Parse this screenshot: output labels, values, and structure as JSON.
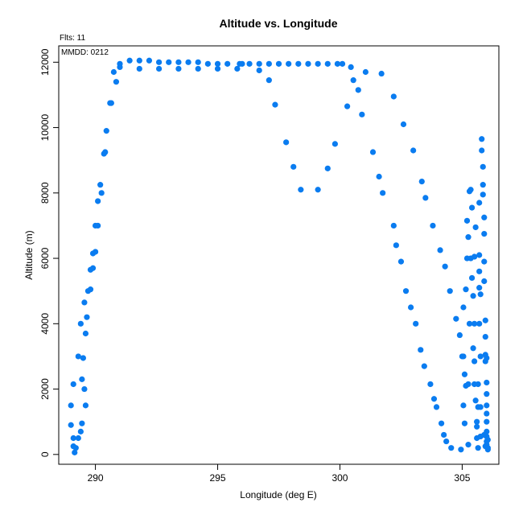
{
  "chart_data": {
    "type": "scatter",
    "title": "Altitude vs. Longitude",
    "xlabel": "Longitude (deg E)",
    "ylabel": "Altitude (m)",
    "xlim": [
      288.5,
      306.5
    ],
    "ylim": [
      -300,
      12500
    ],
    "xticks": [
      "290",
      "295",
      "300",
      "305"
    ],
    "xtick_values": [
      290,
      295,
      300,
      305
    ],
    "yticks": [
      "0",
      "2000",
      "4000",
      "6000",
      "8000",
      "10000",
      "12000"
    ],
    "ytick_values": [
      0,
      2000,
      4000,
      6000,
      8000,
      10000,
      12000
    ],
    "grid": false,
    "marker_color": "#0a7cf0",
    "annotations": {
      "flights": "Flts: 11",
      "date": "MMDD: 0212"
    },
    "series": [
      {
        "points": [
          [
            289.0,
            900
          ],
          [
            289.0,
            1500
          ],
          [
            289.1,
            500
          ],
          [
            289.1,
            250
          ],
          [
            289.15,
            60
          ],
          [
            289.2,
            200
          ],
          [
            289.1,
            2150
          ],
          [
            289.3,
            500
          ],
          [
            289.3,
            3000
          ],
          [
            289.4,
            700
          ],
          [
            289.45,
            950
          ],
          [
            289.45,
            2300
          ],
          [
            289.4,
            4000
          ],
          [
            289.5,
            2950
          ],
          [
            289.55,
            2000
          ],
          [
            289.6,
            1500
          ],
          [
            289.6,
            3700
          ],
          [
            289.55,
            4650
          ],
          [
            289.65,
            4200
          ],
          [
            289.7,
            5000
          ],
          [
            289.8,
            5050
          ],
          [
            289.8,
            5650
          ],
          [
            289.9,
            5700
          ],
          [
            289.9,
            6150
          ],
          [
            290.0,
            6200
          ],
          [
            290.0,
            7000
          ],
          [
            290.1,
            7000
          ],
          [
            290.1,
            7750
          ],
          [
            290.2,
            8250
          ],
          [
            290.25,
            8000
          ],
          [
            290.35,
            9200
          ],
          [
            290.4,
            9250
          ],
          [
            290.45,
            9900
          ],
          [
            290.6,
            10750
          ],
          [
            290.65,
            10750
          ],
          [
            290.75,
            11700
          ],
          [
            290.85,
            11400
          ],
          [
            291.0,
            11850
          ],
          [
            291.0,
            11950
          ],
          [
            291.4,
            12050
          ],
          [
            291.8,
            12050
          ],
          [
            291.8,
            11800
          ],
          [
            292.2,
            12050
          ],
          [
            292.6,
            12000
          ],
          [
            292.6,
            11800
          ],
          [
            293.0,
            12000
          ],
          [
            293.4,
            12000
          ],
          [
            293.4,
            11800
          ],
          [
            293.8,
            12000
          ],
          [
            294.2,
            12000
          ],
          [
            294.2,
            11800
          ],
          [
            294.6,
            11950
          ],
          [
            295.0,
            11800
          ],
          [
            295.0,
            11950
          ],
          [
            295.4,
            11950
          ],
          [
            295.8,
            11800
          ],
          [
            295.9,
            11950
          ],
          [
            296.0,
            11950
          ],
          [
            296.3,
            11950
          ],
          [
            296.7,
            11950
          ],
          [
            296.7,
            11750
          ],
          [
            297.1,
            11950
          ],
          [
            297.1,
            11450
          ],
          [
            297.35,
            10700
          ],
          [
            297.5,
            11950
          ],
          [
            297.8,
            9550
          ],
          [
            297.9,
            11950
          ],
          [
            298.1,
            8800
          ],
          [
            298.3,
            11950
          ],
          [
            298.4,
            8100
          ],
          [
            298.7,
            11950
          ],
          [
            299.1,
            11950
          ],
          [
            299.1,
            8100
          ],
          [
            299.5,
            11950
          ],
          [
            299.5,
            8750
          ],
          [
            299.8,
            9500
          ],
          [
            299.9,
            11950
          ],
          [
            300.1,
            11950
          ],
          [
            300.3,
            10650
          ],
          [
            300.45,
            11850
          ],
          [
            300.55,
            11450
          ],
          [
            300.75,
            11150
          ],
          [
            300.9,
            10400
          ],
          [
            301.05,
            11700
          ],
          [
            301.35,
            9250
          ],
          [
            301.6,
            8500
          ],
          [
            301.7,
            11650
          ],
          [
            301.75,
            8000
          ],
          [
            302.2,
            7000
          ],
          [
            302.2,
            10950
          ],
          [
            302.3,
            6400
          ],
          [
            302.5,
            5900
          ],
          [
            302.6,
            10100
          ],
          [
            302.7,
            5000
          ],
          [
            302.9,
            4500
          ],
          [
            303.0,
            9300
          ],
          [
            303.1,
            4000
          ],
          [
            303.3,
            3200
          ],
          [
            303.35,
            8350
          ],
          [
            303.45,
            2700
          ],
          [
            303.5,
            7850
          ],
          [
            303.7,
            2150
          ],
          [
            303.8,
            7000
          ],
          [
            303.85,
            1700
          ],
          [
            303.95,
            1450
          ],
          [
            304.1,
            6250
          ],
          [
            304.15,
            950
          ],
          [
            304.25,
            600
          ],
          [
            304.3,
            5750
          ],
          [
            304.35,
            400
          ],
          [
            304.5,
            5000
          ],
          [
            304.55,
            200
          ],
          [
            304.75,
            4150
          ],
          [
            304.9,
            3650
          ],
          [
            304.95,
            150
          ],
          [
            305.0,
            3000
          ],
          [
            305.05,
            3000
          ],
          [
            305.05,
            1500
          ],
          [
            305.05,
            4500
          ],
          [
            305.1,
            2450
          ],
          [
            305.1,
            950
          ],
          [
            305.15,
            5050
          ],
          [
            305.15,
            2100
          ],
          [
            305.2,
            6000
          ],
          [
            305.2,
            7150
          ],
          [
            305.25,
            300
          ],
          [
            305.25,
            6650
          ],
          [
            305.25,
            2150
          ],
          [
            305.3,
            8050
          ],
          [
            305.3,
            4000
          ],
          [
            305.35,
            6000
          ],
          [
            305.35,
            8100
          ],
          [
            305.4,
            7550
          ],
          [
            305.4,
            5400
          ],
          [
            305.45,
            4850
          ],
          [
            305.45,
            3250
          ],
          [
            305.5,
            6050
          ],
          [
            305.5,
            4000
          ],
          [
            305.5,
            2850
          ],
          [
            305.5,
            2150
          ],
          [
            305.55,
            6950
          ],
          [
            305.55,
            1650
          ],
          [
            305.6,
            1000
          ],
          [
            305.6,
            850
          ],
          [
            305.6,
            500
          ],
          [
            305.65,
            200
          ],
          [
            305.65,
            1450
          ],
          [
            305.65,
            2150
          ],
          [
            305.7,
            4000
          ],
          [
            305.7,
            5100
          ],
          [
            305.7,
            5600
          ],
          [
            305.7,
            6100
          ],
          [
            305.7,
            7700
          ],
          [
            305.75,
            3000
          ],
          [
            305.75,
            1450
          ],
          [
            305.75,
            550
          ],
          [
            305.75,
            4900
          ],
          [
            305.8,
            9650
          ],
          [
            305.8,
            9300
          ],
          [
            305.85,
            8800
          ],
          [
            305.85,
            8250
          ],
          [
            305.85,
            7950
          ],
          [
            305.9,
            7250
          ],
          [
            305.9,
            6750
          ],
          [
            305.9,
            5900
          ],
          [
            305.9,
            5300
          ],
          [
            305.95,
            4100
          ],
          [
            305.95,
            3600
          ],
          [
            305.95,
            3050
          ],
          [
            305.95,
            2850
          ],
          [
            306.0,
            2200
          ],
          [
            306.0,
            1850
          ],
          [
            306.0,
            1500
          ],
          [
            306.0,
            1250
          ],
          [
            306.0,
            1000
          ],
          [
            306.0,
            700
          ],
          [
            306.0,
            550
          ],
          [
            306.0,
            400
          ],
          [
            306.0,
            300
          ],
          [
            306.05,
            200
          ],
          [
            306.05,
            150
          ],
          [
            305.95,
            250
          ],
          [
            305.9,
            600
          ],
          [
            306.05,
            450
          ],
          [
            306.0,
            2950
          ]
        ]
      }
    ]
  }
}
